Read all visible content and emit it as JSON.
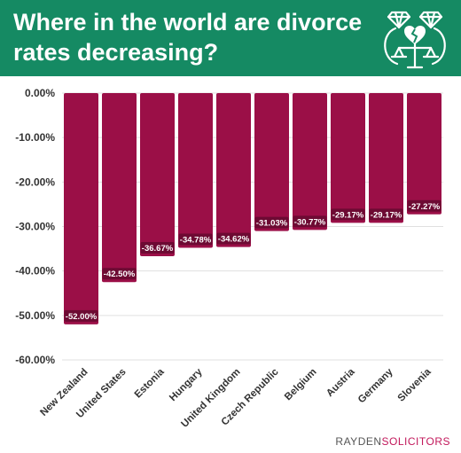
{
  "header": {
    "title": "Where in the world are divorce rates decreasing?"
  },
  "brand": {
    "part1": "RAYDEN",
    "part2": "SOLICITORS"
  },
  "colors": {
    "header_bg": "#158a63",
    "bar": "#9b0f47",
    "label_bg": "#6d0a33",
    "grid": "#e0e0e0",
    "text": "#333333",
    "brand_accent": "#c2185b"
  },
  "icons": [
    "diamond-rings-broken-heart-scales-icon"
  ],
  "chart_data": {
    "type": "bar",
    "categories": [
      "New Zealand",
      "United States",
      "Estonia",
      "Hungary",
      "United Kingdom",
      "Czech Republic",
      "Belgium",
      "Austria",
      "Germany",
      "Slovenia"
    ],
    "values": [
      -52.0,
      -42.5,
      -36.67,
      -34.78,
      -34.62,
      -31.03,
      -30.77,
      -29.17,
      -29.17,
      -27.27
    ],
    "data_labels": [
      "-52.00%",
      "-42.50%",
      "-36.67%",
      "-34.78%",
      "-34.62%",
      "-31.03%",
      "-30.77%",
      "-29.17%",
      "-29.17%",
      "-27.27%"
    ],
    "y_ticks": [
      0,
      -10,
      -20,
      -30,
      -40,
      -50,
      -60
    ],
    "y_tick_labels": [
      "0.00%",
      "-10.00%",
      "-20.00%",
      "-30.00%",
      "-40.00%",
      "-50.00%",
      "-60.00%"
    ],
    "ylim": [
      -60,
      0
    ],
    "grid": true,
    "title": "",
    "xlabel": "",
    "ylabel": ""
  }
}
